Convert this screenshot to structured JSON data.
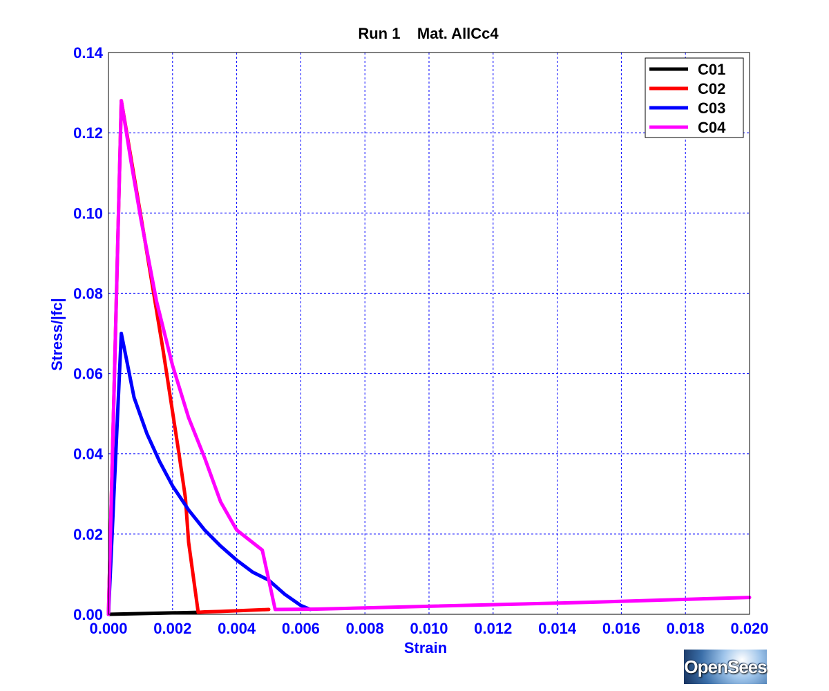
{
  "chart_data": {
    "type": "line",
    "title": "Run 1    Mat. AllCc4",
    "xlabel": "Strain",
    "ylabel": "Stress/|fc|",
    "xlim": [
      0.0,
      0.02
    ],
    "ylim": [
      0.0,
      0.14
    ],
    "x_ticks": [
      "0.000",
      "0.002",
      "0.004",
      "0.006",
      "0.008",
      "0.010",
      "0.012",
      "0.014",
      "0.016",
      "0.018",
      "0.020"
    ],
    "y_ticks": [
      "0.00",
      "0.02",
      "0.04",
      "0.06",
      "0.08",
      "0.10",
      "0.12",
      "0.14"
    ],
    "grid": true,
    "legend_position": "top-right",
    "series": [
      {
        "name": "C01",
        "color": "#000000",
        "points": [
          [
            0.0,
            0.0
          ],
          [
            0.0028,
            0.0005
          ]
        ]
      },
      {
        "name": "C02",
        "color": "#ff0000",
        "points": [
          [
            0.0,
            0.0
          ],
          [
            0.0004,
            0.128
          ],
          [
            0.0011,
            0.095
          ],
          [
            0.0017,
            0.066
          ],
          [
            0.0022,
            0.04
          ],
          [
            0.0024,
            0.029
          ],
          [
            0.0025,
            0.018
          ],
          [
            0.0028,
            0.0005
          ],
          [
            0.003,
            0.0006
          ],
          [
            0.0035,
            0.0007
          ],
          [
            0.005,
            0.0012
          ]
        ]
      },
      {
        "name": "C03",
        "color": "#0000ff",
        "points": [
          [
            0.0,
            0.0
          ],
          [
            0.0004,
            0.07
          ],
          [
            0.0008,
            0.054
          ],
          [
            0.0012,
            0.045
          ],
          [
            0.0016,
            0.038
          ],
          [
            0.002,
            0.032
          ],
          [
            0.0025,
            0.026
          ],
          [
            0.003,
            0.021
          ],
          [
            0.0035,
            0.017
          ],
          [
            0.004,
            0.0135
          ],
          [
            0.0045,
            0.0105
          ],
          [
            0.005,
            0.0085
          ],
          [
            0.0055,
            0.005
          ],
          [
            0.006,
            0.0022
          ],
          [
            0.0063,
            0.0012
          ]
        ]
      },
      {
        "name": "C04",
        "color": "#ff00ff",
        "points": [
          [
            0.0,
            0.0
          ],
          [
            0.0004,
            0.128
          ],
          [
            0.0007,
            0.113
          ],
          [
            0.001,
            0.099
          ],
          [
            0.0015,
            0.078
          ],
          [
            0.002,
            0.062
          ],
          [
            0.0025,
            0.049
          ],
          [
            0.003,
            0.039
          ],
          [
            0.0035,
            0.028
          ],
          [
            0.004,
            0.021
          ],
          [
            0.0048,
            0.016
          ],
          [
            0.0052,
            0.0012
          ],
          [
            0.0065,
            0.0013
          ],
          [
            0.01,
            0.002
          ],
          [
            0.015,
            0.003
          ],
          [
            0.02,
            0.0042
          ]
        ]
      }
    ]
  },
  "logo_text": "OpenSees"
}
